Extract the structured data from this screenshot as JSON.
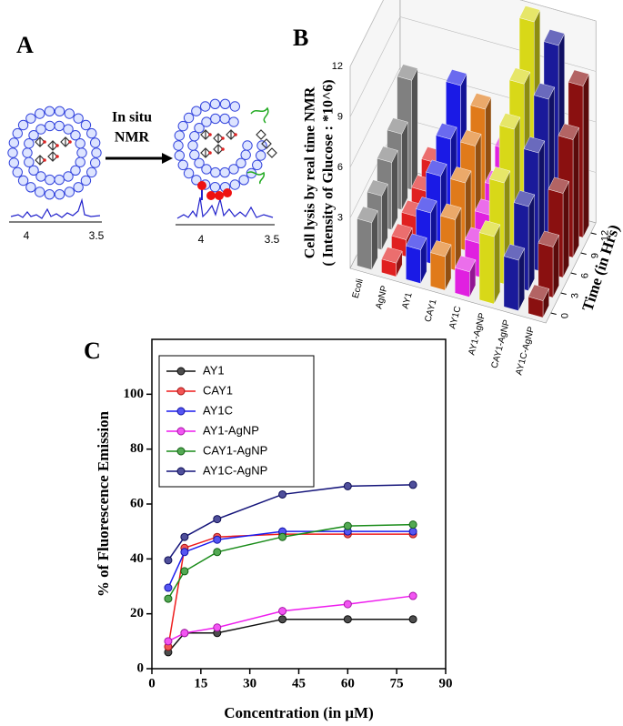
{
  "panel_labels": [
    "A",
    "B",
    "C"
  ],
  "diagram": {
    "arrow_label": [
      "In situ",
      "NMR"
    ],
    "left_spectrum_ticks": [
      4,
      3.5
    ],
    "right_spectrum_ticks": [
      4,
      3.5
    ]
  },
  "chart_data": [
    {
      "type": "bar3d",
      "zlabel": [
        "Cell lysis  by real time NMR",
        "( Intensity of Glucose : *10^6)"
      ],
      "ylabel": "Time (in Hrs)",
      "y": [
        0,
        3,
        6,
        9,
        12
      ],
      "ylim": [
        -1.5,
        13.5
      ],
      "yticks": [
        0,
        3,
        6,
        9,
        12
      ],
      "zlim": [
        0,
        12
      ],
      "zticks": [
        3,
        6,
        9,
        12
      ],
      "grid": true,
      "series": [
        {
          "name": "Ecoli",
          "color": "#808080",
          "values": [
            2.8,
            3.2,
            4,
            4.5,
            6.5
          ]
        },
        {
          "name": "AgNP",
          "color": "#e02020",
          "values": [
            0.8,
            1,
            1.2,
            1.5,
            2
          ]
        },
        {
          "name": "AY1",
          "color": "#1a1ae6",
          "values": [
            2,
            3,
            4,
            5,
            7
          ]
        },
        {
          "name": "CAY1",
          "color": "#e07a1a",
          "values": [
            2,
            3,
            4,
            5,
            6
          ]
        },
        {
          "name": "AY1C",
          "color": "#e020e0",
          "values": [
            1.5,
            2,
            2.5,
            3,
            4
          ]
        },
        {
          "name": "AY1-AgNP",
          "color": "#d8d818",
          "values": [
            4,
            6,
            8,
            9.5,
            12
          ]
        },
        {
          "name": "CAY1-AgNP",
          "color": "#1a1a9a",
          "values": [
            3,
            5,
            7,
            9,
            11
          ]
        },
        {
          "name": "AY1C-AgNP",
          "color": "#8a1010",
          "values": [
            1,
            3,
            5,
            7,
            9
          ]
        }
      ]
    },
    {
      "type": "line",
      "xlabel": "Concentration (in μM)",
      "ylabel": "% of Fluorescence Emission",
      "x": [
        5,
        10,
        20,
        40,
        60,
        80
      ],
      "xlim": [
        0,
        90
      ],
      "xticks": [
        0,
        15,
        30,
        45,
        60,
        75,
        90
      ],
      "ylim": [
        0,
        120
      ],
      "yticks": [
        0,
        20,
        40,
        60,
        80,
        100
      ],
      "legend": "upper left",
      "series": [
        {
          "name": "AY1",
          "color": "#111111",
          "values": [
            6,
            13,
            13,
            18,
            18,
            18
          ]
        },
        {
          "name": "CAY1",
          "color": "#ee1c1c",
          "values": [
            8,
            44,
            48,
            49,
            49,
            49
          ]
        },
        {
          "name": "AY1C",
          "color": "#1c1cee",
          "values": [
            29.5,
            42.5,
            47,
            50,
            50,
            50
          ]
        },
        {
          "name": "AY1-AgNP",
          "color": "#ee1cee",
          "values": [
            10,
            13,
            15,
            21,
            23.5,
            26.5
          ]
        },
        {
          "name": "CAY1-AgNP",
          "color": "#1a8c1a",
          "values": [
            25.5,
            35.5,
            42.5,
            48,
            52,
            52.5
          ]
        },
        {
          "name": "AY1C-AgNP",
          "color": "#14147a",
          "values": [
            39.5,
            48,
            54.5,
            63.5,
            66.5,
            67
          ]
        }
      ]
    }
  ]
}
